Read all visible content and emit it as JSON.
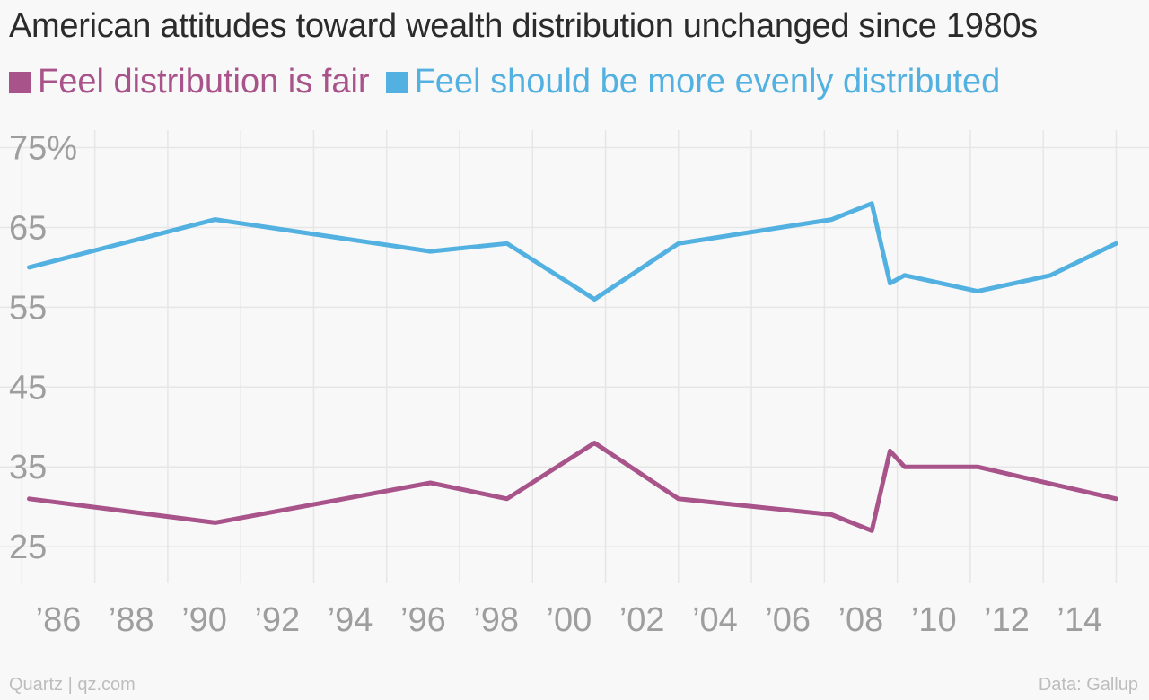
{
  "chart_data": {
    "type": "line",
    "title": "American attitudes toward wealth distribution unchanged since 1980s",
    "y_ticks": [
      {
        "value": 75,
        "label": "75%"
      },
      {
        "value": 65,
        "label": "65"
      },
      {
        "value": 55,
        "label": "55"
      },
      {
        "value": 45,
        "label": "45"
      },
      {
        "value": 35,
        "label": "35"
      },
      {
        "value": 25,
        "label": "25"
      }
    ],
    "x_ticks": [
      {
        "value": 1986,
        "label": "’86"
      },
      {
        "value": 1988,
        "label": "’88"
      },
      {
        "value": 1990,
        "label": "’90"
      },
      {
        "value": 1992,
        "label": "’92"
      },
      {
        "value": 1994,
        "label": "’94"
      },
      {
        "value": 1996,
        "label": "’96"
      },
      {
        "value": 1998,
        "label": "’98"
      },
      {
        "value": 2000,
        "label": "’00"
      },
      {
        "value": 2002,
        "label": "’02"
      },
      {
        "value": 2004,
        "label": "’04"
      },
      {
        "value": 2006,
        "label": "’06"
      },
      {
        "value": 2008,
        "label": "’08"
      },
      {
        "value": 2010,
        "label": "’10"
      },
      {
        "value": 2012,
        "label": "’12"
      },
      {
        "value": 2014,
        "label": "’14"
      }
    ],
    "xlim": [
      1984.4,
      2015.9
    ],
    "ylim": [
      20.4,
      77.2
    ],
    "grid": true,
    "legend_position": "top-left",
    "series": [
      {
        "name": "Feel distribution is fair",
        "color": "#a8538a",
        "points": [
          {
            "x": 1985.2,
            "y": 31
          },
          {
            "x": 1990.3,
            "y": 28
          },
          {
            "x": 1996.2,
            "y": 33
          },
          {
            "x": 1998.3,
            "y": 31
          },
          {
            "x": 2000.7,
            "y": 38
          },
          {
            "x": 2003.0,
            "y": 31
          },
          {
            "x": 2007.2,
            "y": 29
          },
          {
            "x": 2008.3,
            "y": 27
          },
          {
            "x": 2008.8,
            "y": 37
          },
          {
            "x": 2009.2,
            "y": 35
          },
          {
            "x": 2011.2,
            "y": 35
          },
          {
            "x": 2015.0,
            "y": 31
          }
        ]
      },
      {
        "name": "Feel should be more evenly distributed",
        "color": "#52b1e0",
        "points": [
          {
            "x": 1985.2,
            "y": 60
          },
          {
            "x": 1990.3,
            "y": 66
          },
          {
            "x": 1996.2,
            "y": 62
          },
          {
            "x": 1998.3,
            "y": 63
          },
          {
            "x": 2000.7,
            "y": 56
          },
          {
            "x": 2003.0,
            "y": 63
          },
          {
            "x": 2007.2,
            "y": 66
          },
          {
            "x": 2008.3,
            "y": 68
          },
          {
            "x": 2008.8,
            "y": 58
          },
          {
            "x": 2009.2,
            "y": 59
          },
          {
            "x": 2011.2,
            "y": 57
          },
          {
            "x": 2013.2,
            "y": 59
          },
          {
            "x": 2015.0,
            "y": 63
          }
        ]
      }
    ]
  },
  "footer": {
    "source_left": "Quartz | qz.com",
    "source_right": "Data: Gallup"
  }
}
